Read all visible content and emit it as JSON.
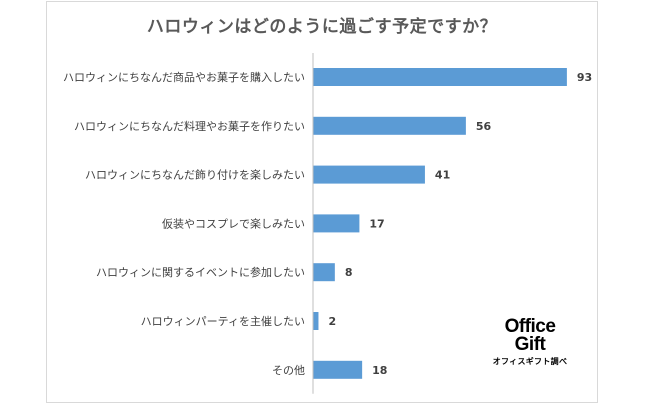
{
  "chart_data": {
    "type": "bar",
    "orientation": "horizontal",
    "title": "ハロウィンはどのように過ごす予定ですか？",
    "categories": [
      "ハロウィンにちなんだ商品やお菓子を購入したい",
      "ハロウィンにちなんだ料理やお菓子を作りたい",
      "ハロウィンにちなんだ飾り付けを楽しみたい",
      "仮装やコスプレで楽しみたい",
      "ハロウィンに関するイベントに参加したい",
      "ハロウィンパーティを主催したい",
      "その他"
    ],
    "values": [
      93,
      56,
      41,
      17,
      8,
      2,
      18
    ],
    "xlim": [
      0,
      100
    ],
    "grid": false,
    "legend": "none",
    "bar_color": "#5b9bd5",
    "data_labels": true
  },
  "brand": {
    "line1": "Office",
    "line2": "Gift",
    "note": "オフィスギフト調べ"
  }
}
